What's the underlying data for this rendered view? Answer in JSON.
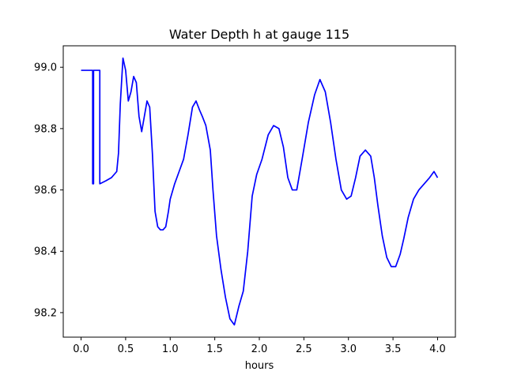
{
  "chart_data": {
    "type": "line",
    "title": "Water Depth h at gauge 115",
    "xlabel": "hours",
    "ylabel": "",
    "xlim": [
      -0.2,
      4.2
    ],
    "ylim": [
      98.12,
      99.07
    ],
    "xticks": [
      0.0,
      0.5,
      1.0,
      1.5,
      2.0,
      2.5,
      3.0,
      3.5,
      4.0
    ],
    "xtick_labels": [
      "0.0",
      "0.5",
      "1.0",
      "1.5",
      "2.0",
      "2.5",
      "3.0",
      "3.5",
      "4.0"
    ],
    "yticks": [
      98.2,
      98.4,
      98.6,
      98.8,
      99.0
    ],
    "ytick_labels": [
      "98.2",
      "98.4",
      "98.6",
      "98.8",
      "99.0"
    ],
    "grid": false,
    "legend": "none",
    "series": [
      {
        "color": "#0000ff",
        "x": [
          0.0,
          0.13,
          0.13,
          0.14,
          0.14,
          0.21,
          0.21,
          0.28,
          0.34,
          0.4,
          0.42,
          0.44,
          0.47,
          0.5,
          0.53,
          0.56,
          0.59,
          0.62,
          0.65,
          0.68,
          0.71,
          0.74,
          0.77,
          0.8,
          0.83,
          0.86,
          0.89,
          0.92,
          0.95,
          0.98,
          1.0,
          1.05,
          1.1,
          1.15,
          1.2,
          1.25,
          1.29,
          1.33,
          1.36,
          1.4,
          1.45,
          1.48,
          1.52,
          1.57,
          1.62,
          1.67,
          1.72,
          1.77,
          1.82,
          1.87,
          1.92,
          1.97,
          2.03,
          2.1,
          2.16,
          2.22,
          2.27,
          2.32,
          2.37,
          2.42,
          2.48,
          2.55,
          2.62,
          2.68,
          2.74,
          2.8,
          2.86,
          2.92,
          2.98,
          3.03,
          3.08,
          3.13,
          3.19,
          3.25,
          3.29,
          3.33,
          3.38,
          3.43,
          3.48,
          3.53,
          3.58,
          3.62,
          3.67,
          3.73,
          3.79,
          3.85,
          3.91,
          3.96,
          4.0
        ],
        "y": [
          98.99,
          98.99,
          98.62,
          98.62,
          98.99,
          98.99,
          98.62,
          98.63,
          98.64,
          98.66,
          98.72,
          98.88,
          99.03,
          98.99,
          98.89,
          98.92,
          98.97,
          98.95,
          98.84,
          98.79,
          98.84,
          98.89,
          98.87,
          98.72,
          98.53,
          98.48,
          98.47,
          98.47,
          98.48,
          98.53,
          98.57,
          98.62,
          98.66,
          98.7,
          98.78,
          98.87,
          98.89,
          98.86,
          98.84,
          98.81,
          98.73,
          98.6,
          98.45,
          98.34,
          98.25,
          98.18,
          98.16,
          98.22,
          98.27,
          98.4,
          98.58,
          98.65,
          98.7,
          98.78,
          98.81,
          98.8,
          98.74,
          98.64,
          98.6,
          98.6,
          98.7,
          98.82,
          98.91,
          98.96,
          98.92,
          98.82,
          98.7,
          98.6,
          98.57,
          98.58,
          98.64,
          98.71,
          98.73,
          98.71,
          98.64,
          98.55,
          98.45,
          98.38,
          98.35,
          98.35,
          98.39,
          98.44,
          98.51,
          98.57,
          98.6,
          98.62,
          98.64,
          98.66,
          98.64
        ]
      }
    ]
  }
}
